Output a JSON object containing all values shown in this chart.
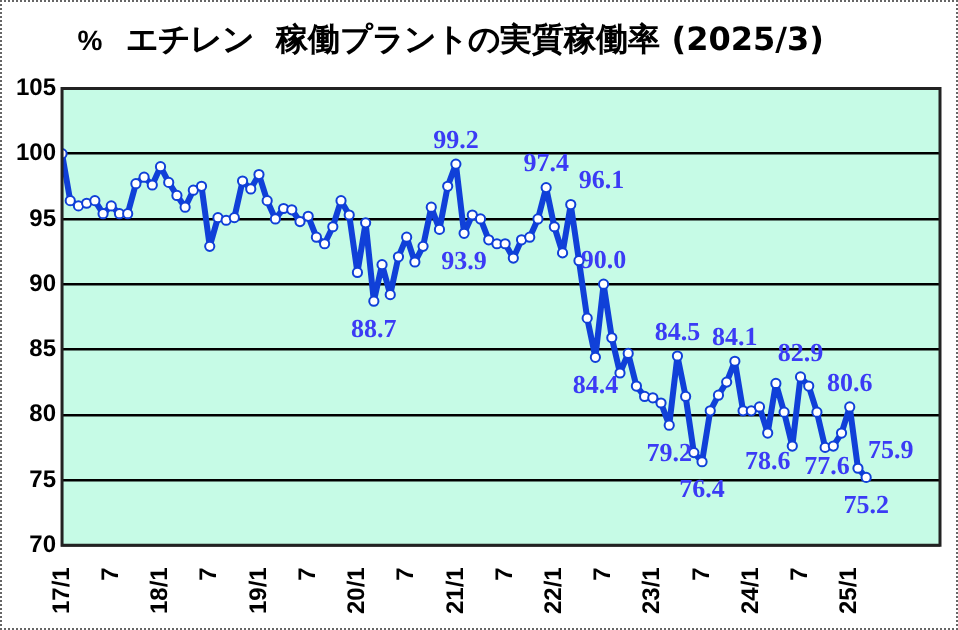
{
  "chart_data": {
    "type": "line",
    "title": "エチレン  稼働プラントの実質稼働率 (2025/3)",
    "ylabel": "%",
    "categories": [
      "17/1",
      null,
      null,
      null,
      null,
      null,
      "7",
      null,
      null,
      null,
      null,
      null,
      "18/1",
      null,
      null,
      null,
      null,
      null,
      "7",
      null,
      null,
      null,
      null,
      null,
      "19/1",
      null,
      null,
      null,
      null,
      null,
      "7",
      null,
      null,
      null,
      null,
      null,
      "20/1",
      null,
      null,
      null,
      null,
      null,
      "7",
      null,
      null,
      null,
      null,
      null,
      "21/1",
      null,
      null,
      null,
      null,
      null,
      "7",
      null,
      null,
      null,
      null,
      null,
      "22/1",
      null,
      null,
      null,
      null,
      null,
      "7",
      null,
      null,
      null,
      null,
      null,
      "23/1",
      null,
      null,
      null,
      null,
      null,
      "7",
      null,
      null,
      null,
      null,
      null,
      "24/1",
      null,
      null,
      null,
      null,
      null,
      "7",
      null,
      null,
      null,
      null,
      null,
      "25/1",
      null,
      null
    ],
    "series": [
      {
        "color": "#1040d8",
        "values": [
          100,
          96.4,
          96.0,
          96.2,
          96.4,
          95.4,
          96.0,
          95.4,
          95.4,
          97.7,
          98.2,
          97.6,
          99.0,
          97.8,
          96.8,
          95.9,
          97.2,
          97.5,
          92.9,
          95.1,
          94.9,
          95.1,
          97.9,
          97.3,
          98.4,
          96.4,
          95.0,
          95.8,
          95.7,
          94.8,
          95.2,
          93.6,
          93.1,
          94.4,
          96.4,
          95.3,
          90.9,
          94.7,
          88.7,
          91.5,
          89.2,
          92.1,
          93.6,
          91.7,
          92.9,
          95.9,
          94.2,
          97.5,
          99.2,
          93.9,
          95.3,
          95.0,
          93.4,
          93.1,
          93.1,
          92.0,
          93.4,
          93.6,
          95.0,
          97.4,
          94.4,
          92.4,
          96.1,
          91.8,
          87.4,
          84.4,
          90.0,
          85.9,
          83.2,
          84.7,
          82.2,
          81.4,
          81.3,
          80.9,
          79.2,
          84.5,
          81.4,
          77.1,
          76.4,
          80.3,
          81.5,
          82.5,
          84.1,
          80.3,
          80.3,
          80.6,
          78.6,
          82.4,
          80.2,
          77.6,
          82.9,
          82.2,
          80.2,
          77.5,
          77.6,
          78.6,
          80.6,
          75.9,
          75.2
        ],
        "value_labels": [
          null,
          null,
          null,
          null,
          null,
          null,
          null,
          null,
          null,
          null,
          null,
          null,
          null,
          null,
          null,
          null,
          null,
          null,
          null,
          null,
          null,
          null,
          null,
          null,
          null,
          null,
          null,
          null,
          null,
          null,
          null,
          null,
          null,
          null,
          null,
          null,
          null,
          null,
          "88.7",
          null,
          null,
          null,
          null,
          null,
          null,
          null,
          null,
          null,
          "99.2",
          "93.9",
          null,
          null,
          null,
          null,
          null,
          null,
          null,
          null,
          null,
          "97.4",
          null,
          null,
          "96.1",
          null,
          null,
          "84.4",
          "90.0",
          null,
          null,
          null,
          null,
          null,
          null,
          null,
          "79.2",
          "84.5",
          null,
          null,
          "76.4",
          null,
          null,
          null,
          "84.1",
          null,
          null,
          null,
          "78.6",
          null,
          null,
          "77.6",
          "82.9",
          null,
          null,
          null,
          null,
          null,
          "80.6",
          "75.9",
          "75.2"
        ]
      }
    ],
    "ylim": [
      70,
      105
    ],
    "yticks": [
      70,
      75,
      80,
      85,
      90,
      95,
      100,
      105
    ],
    "grid": "y",
    "legend": false,
    "marker": "circle",
    "line_style": "solid"
  }
}
